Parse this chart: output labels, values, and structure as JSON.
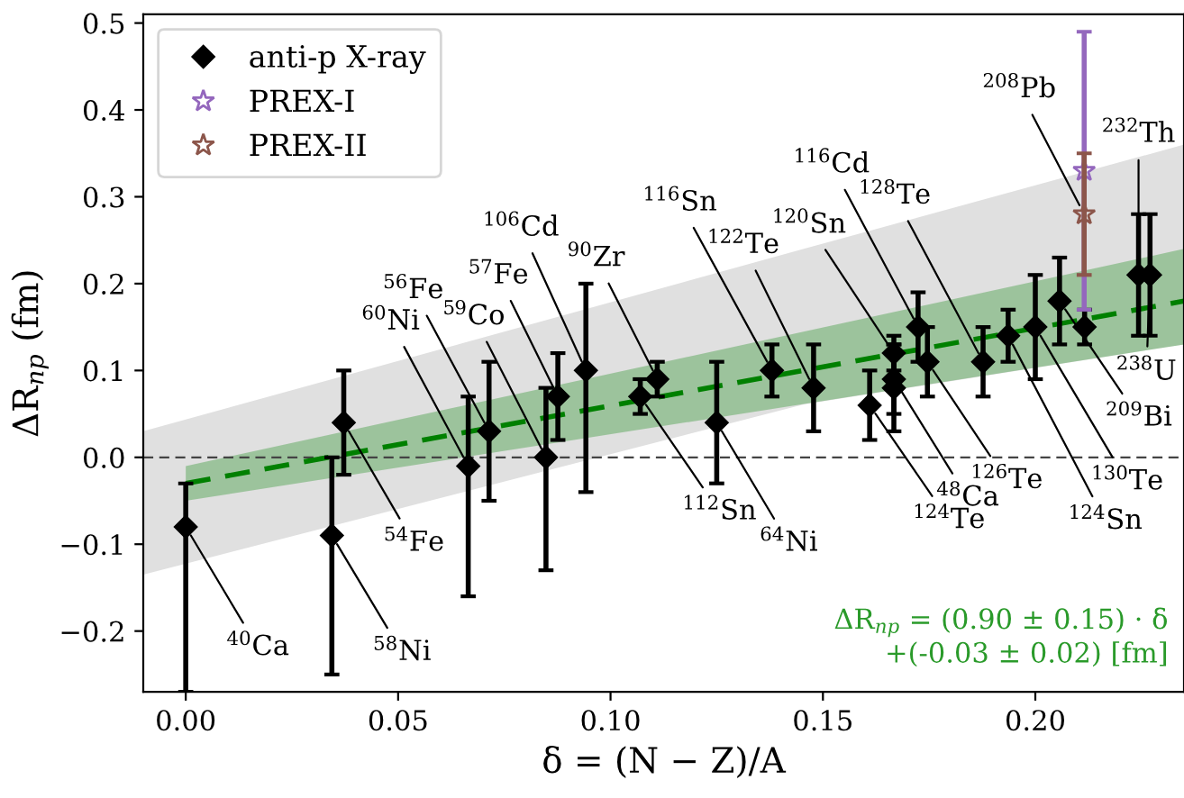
{
  "chart_data": {
    "type": "scatter",
    "xlabel": "δ = (N − Z)/A",
    "ylabel": "ΔR$_{np}$ (fm)",
    "xlim": [
      -0.01,
      0.235
    ],
    "ylim": [
      -0.27,
      0.51
    ],
    "xticks": [
      {
        "value": 0.0,
        "label": "0.00"
      },
      {
        "value": 0.05,
        "label": "0.05"
      },
      {
        "value": 0.1,
        "label": "0.10"
      },
      {
        "value": 0.15,
        "label": "0.15"
      },
      {
        "value": 0.2,
        "label": "0.20"
      }
    ],
    "yticks": [
      {
        "value": -0.2,
        "label": "−0.2"
      },
      {
        "value": -0.1,
        "label": "−0.1"
      },
      {
        "value": 0.0,
        "label": "0.0"
      },
      {
        "value": 0.1,
        "label": "0.1"
      },
      {
        "value": 0.2,
        "label": "0.2"
      },
      {
        "value": 0.3,
        "label": "0.3"
      },
      {
        "value": 0.4,
        "label": "0.4"
      },
      {
        "value": 0.5,
        "label": "0.5"
      }
    ],
    "grid": false,
    "legend": "top left",
    "ref_lines": [
      {
        "axis": "y",
        "value": 0,
        "color": "#444444",
        "line_style": "dashed"
      }
    ],
    "series": [
      {
        "type": "line",
        "color": "#e0e0e0",
        "x": [
          -0.01,
          0.1455,
          0.235
        ],
        "values": [
          null,
          null,
          null
        ],
        "lower": [
          -0.135,
          0.061,
          0.13
        ],
        "upper": [
          0.03,
          0.24,
          0.36
        ]
      },
      {
        "type": "line",
        "color": "#008000",
        "line_style": "dashed",
        "x": [
          0.0,
          0.235
        ],
        "values": [
          -0.03,
          0.18
        ],
        "lower": [
          -0.05,
          0.13
        ],
        "upper": [
          -0.01,
          0.24
        ]
      },
      {
        "name": "anti-p X-ray",
        "color": "#000000",
        "marker": "diamond",
        "x": [
          0.0,
          0.0344,
          0.0372,
          0.0665,
          0.0714,
          0.0848,
          0.0876,
          0.0942,
          0.107,
          0.111,
          0.125,
          0.138,
          0.1478,
          0.161,
          0.1667,
          0.1667,
          0.1667,
          0.1724,
          0.1746,
          0.1877,
          0.1936,
          0.2,
          0.2057,
          0.2116,
          0.2243,
          0.227
        ],
        "values": [
          -0.08,
          -0.09,
          0.04,
          -0.01,
          0.03,
          0.0,
          0.07,
          0.1,
          0.07,
          0.09,
          0.04,
          0.1,
          0.08,
          0.06,
          0.12,
          0.09,
          0.08,
          0.15,
          0.11,
          0.11,
          0.14,
          0.15,
          0.18,
          0.15,
          0.21,
          0.21
        ],
        "errors": [
          [
            -0.27,
            -0.03
          ],
          [
            -0.25,
            0.0
          ],
          0.06,
          [
            -0.16,
            0.07
          ],
          0.08,
          [
            -0.13,
            0.08
          ],
          0.05,
          [
            -0.04,
            0.2
          ],
          0.02,
          0.02,
          0.07,
          0.03,
          0.05,
          0.04,
          0.02,
          0.04,
          0.05,
          0.04,
          0.04,
          0.04,
          0.03,
          0.06,
          0.05,
          0.02,
          0.07,
          0.07
        ]
      },
      {
        "name": "PREX-I",
        "color": "#9467bd",
        "marker": "star",
        "x": [
          0.2115
        ],
        "values": [
          0.33
        ],
        "errors": [
          0.16
        ]
      },
      {
        "name": "PREX-II",
        "color": "#8c564b",
        "marker": "star",
        "x": [
          0.2115
        ],
        "values": [
          0.28
        ],
        "errors": [
          0.07
        ]
      }
    ],
    "annotations": [
      {
        "text": "$^{40}$Ca",
        "x": 0.0,
        "y": -0.08
      },
      {
        "text": "$^{58}$Ni",
        "x": 0.0344,
        "y": -0.09
      },
      {
        "text": "$^{54}$Fe",
        "x": 0.0372,
        "y": 0.04
      },
      {
        "text": "$^{60}$Ni",
        "x": 0.0665,
        "y": -0.01
      },
      {
        "text": "$^{56}$Fe",
        "x": 0.0714,
        "y": 0.03
      },
      {
        "text": "$^{59}$Co",
        "x": 0.0848,
        "y": 0.0
      },
      {
        "text": "$^{57}$Fe",
        "x": 0.0876,
        "y": 0.07
      },
      {
        "text": "$^{106}$Cd",
        "x": 0.0942,
        "y": 0.1
      },
      {
        "text": "$^{90}$Zr",
        "x": 0.111,
        "y": 0.09
      },
      {
        "text": "$^{112}$Sn",
        "x": 0.107,
        "y": 0.07
      },
      {
        "text": "$^{64}$Ni",
        "x": 0.125,
        "y": 0.04
      },
      {
        "text": "$^{116}$Sn",
        "x": 0.138,
        "y": 0.1
      },
      {
        "text": "$^{122}$Te",
        "x": 0.1478,
        "y": 0.08
      },
      {
        "text": "$^{120}$Sn",
        "x": 0.1667,
        "y": 0.12
      },
      {
        "text": "$^{124}$Te",
        "x": 0.161,
        "y": 0.06
      },
      {
        "text": "$^{48}$Ca",
        "x": 0.1667,
        "y": 0.09
      },
      {
        "text": "$^{126}$Te",
        "x": 0.1746,
        "y": 0.11
      },
      {
        "text": "$^{116}$Cd",
        "x": 0.1724,
        "y": 0.15
      },
      {
        "text": "$^{128}$Te",
        "x": 0.1877,
        "y": 0.11
      },
      {
        "text": "$^{124}$Sn",
        "x": 0.1936,
        "y": 0.14
      },
      {
        "text": "$^{130}$Te",
        "x": 0.2,
        "y": 0.15
      },
      {
        "text": "$^{209}$Bi",
        "x": 0.2057,
        "y": 0.18
      },
      {
        "text": "$^{208}$Pb",
        "x": 0.2115,
        "y": 0.28
      },
      {
        "text": "$^{232}$Th",
        "x": 0.2243,
        "y": 0.21
      },
      {
        "text": "$^{238}$U",
        "x": 0.227,
        "y": 0.21
      },
      "ΔR$_{np}$ = (0.90 ± 0.15) · δ\n+(-0.03 ± 0.02) [fm]"
    ]
  }
}
